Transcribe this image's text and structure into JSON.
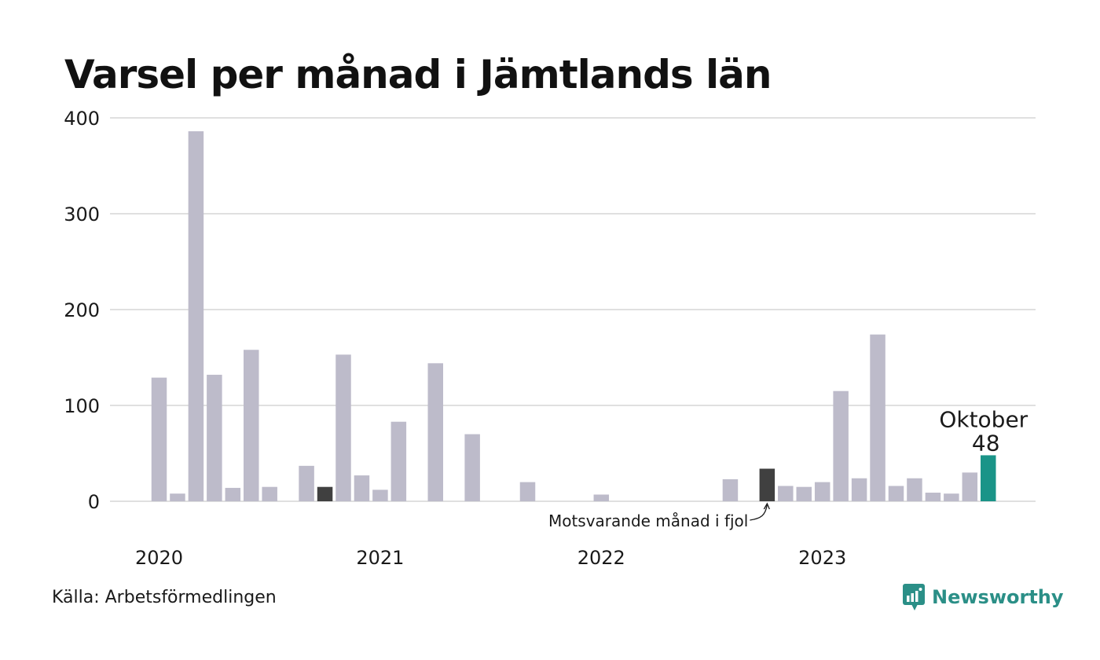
{
  "title": "Varsel per månad i Jämtlands län",
  "source": "Källa: Arbetsförmedlingen",
  "brand": {
    "name": "Newsworthy",
    "icon": "newsworthy-logo-icon"
  },
  "colors": {
    "default": "#bdbbca",
    "previous_year": "#404040",
    "current": "#1a9488",
    "grid": "#e0e0e0"
  },
  "annotations": {
    "current_month": "Oktober",
    "current_value": "48",
    "previous_year_label": "Motsvarande månad i fjol"
  },
  "chart_data": {
    "type": "bar",
    "title": "Varsel per månad i Jämtlands län",
    "ylim": [
      0,
      400
    ],
    "yticks": [
      "0",
      "100",
      "200",
      "300",
      "400"
    ],
    "xticks": [
      "2020",
      "2021",
      "2022",
      "2023"
    ],
    "grid": true,
    "categories": [
      "2020-01",
      "2020-02",
      "2020-03",
      "2020-04",
      "2020-05",
      "2020-06",
      "2020-07",
      "2020-08",
      "2020-09",
      "2020-10",
      "2020-11",
      "2020-12",
      "2021-01",
      "2021-02",
      "2021-03",
      "2021-04",
      "2021-05",
      "2021-06",
      "2021-07",
      "2021-08",
      "2021-09",
      "2021-10",
      "2021-11",
      "2021-12",
      "2022-01",
      "2022-02",
      "2022-03",
      "2022-04",
      "2022-05",
      "2022-06",
      "2022-07",
      "2022-08",
      "2022-09",
      "2022-10",
      "2022-11",
      "2022-12",
      "2023-01",
      "2023-02",
      "2023-03",
      "2023-04",
      "2023-05",
      "2023-06",
      "2023-07",
      "2023-08",
      "2023-09",
      "2023-10"
    ],
    "values": [
      129,
      8,
      386,
      132,
      14,
      158,
      15,
      0,
      37,
      15,
      153,
      27,
      12,
      83,
      0,
      144,
      0,
      70,
      0,
      0,
      20,
      0,
      0,
      0,
      7,
      0,
      0,
      0,
      0,
      0,
      0,
      23,
      0,
      34,
      16,
      15,
      20,
      115,
      24,
      174,
      16,
      24,
      9,
      8,
      30,
      48
    ],
    "highlights": {
      "previous_year": [
        "2020-10",
        "2022-10"
      ],
      "current": "2023-10"
    }
  }
}
